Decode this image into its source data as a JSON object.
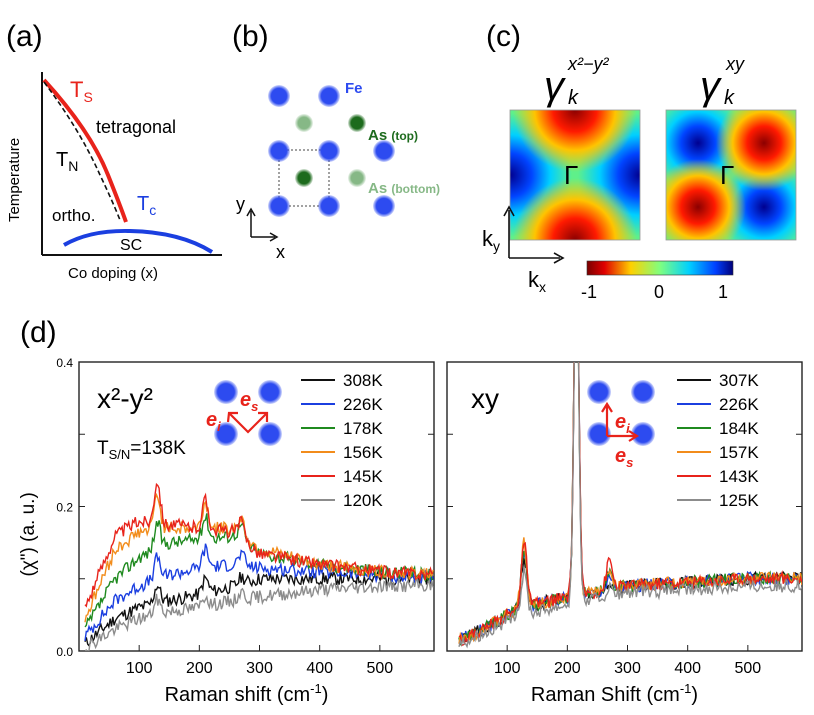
{
  "panels": {
    "a": {
      "label": "(a)",
      "ylabel": "Temperature",
      "xlabel": "Co doping (x)",
      "ts": "T",
      "ts_sub": "S",
      "tn": "T",
      "tn_sub": "N",
      "tc": "T",
      "tc_sub": "c",
      "tetragonal": "tetragonal",
      "ortho": "ortho.",
      "sc": "SC"
    },
    "b": {
      "label": "(b)",
      "fe": "Fe",
      "as_top": "As",
      "as_top_tag": "(top)",
      "as_bottom": "As",
      "as_bottom_tag": "(bottom)",
      "x": "x",
      "y": "y"
    },
    "c": {
      "label": "(c)",
      "gamma1": "γ",
      "gamma1_sub": "k",
      "gamma1_sup": "x²−y²",
      "gamma2": "γ",
      "gamma2_sub": "k",
      "gamma2_sup": "xy",
      "center1": "Γ",
      "center2": "Γ",
      "ky": "k",
      "ky_sub": "y",
      "kx": "k",
      "kx_sub": "x",
      "colorbar": [
        "-1",
        "0",
        "1"
      ]
    },
    "d": {
      "label": "(d)"
    }
  },
  "colors": {
    "red": "#e8231b",
    "blue": "#1b3fe0",
    "black": "#111111",
    "fe_blue": "#2d4bf0",
    "as_top": "#1d6b1d",
    "as_bottom": "#86b886"
  },
  "chart_data": [
    {
      "type": "line",
      "title": "x²-y²",
      "annotation": "T",
      "annotation_sub": "S/N",
      "annotation_rest": "=138K",
      "xlabel": "Raman shift (cm",
      "xlabel_sup": "-1",
      "xlabel_end": ")",
      "ylabel": "(χ\")  (a. u.)",
      "xlim": [
        0,
        590
      ],
      "ylim": [
        0.0,
        0.4
      ],
      "xticks": [
        "100",
        "200",
        "300",
        "400",
        "500"
      ],
      "yticks": [
        "0.0",
        "0.2",
        "0.4"
      ],
      "polarization": [
        "e",
        "i",
        "e",
        "s"
      ],
      "series": [
        {
          "name": "308K",
          "color": "#111111",
          "base": [
            [
              10,
              0.01
            ],
            [
              60,
              0.045
            ],
            [
              100,
              0.06
            ],
            [
              150,
              0.07
            ],
            [
              200,
              0.078
            ],
            [
              260,
              0.09
            ],
            [
              300,
              0.1
            ],
            [
              400,
              0.1
            ],
            [
              500,
              0.1
            ],
            [
              590,
              0.1
            ]
          ],
          "peaks": [
            [
              130,
              0.025
            ],
            [
              210,
              0.02
            ],
            [
              270,
              0.01
            ]
          ]
        },
        {
          "name": "226K",
          "color": "#1b3fe0",
          "base": [
            [
              10,
              0.02
            ],
            [
              60,
              0.07
            ],
            [
              100,
              0.09
            ],
            [
              150,
              0.105
            ],
            [
              200,
              0.115
            ],
            [
              260,
              0.12
            ],
            [
              300,
              0.115
            ],
            [
              400,
              0.11
            ],
            [
              500,
              0.105
            ],
            [
              590,
              0.1
            ]
          ],
          "peaks": [
            [
              130,
              0.03
            ],
            [
              210,
              0.025
            ],
            [
              270,
              0.015
            ]
          ]
        },
        {
          "name": "178K",
          "color": "#1f8a1f",
          "base": [
            [
              10,
              0.03
            ],
            [
              60,
              0.1
            ],
            [
              100,
              0.13
            ],
            [
              150,
              0.15
            ],
            [
              200,
              0.155
            ],
            [
              260,
              0.16
            ],
            [
              300,
              0.135
            ],
            [
              400,
              0.12
            ],
            [
              500,
              0.11
            ],
            [
              590,
              0.105
            ]
          ],
          "peaks": [
            [
              130,
              0.035
            ],
            [
              210,
              0.03
            ],
            [
              270,
              0.02
            ]
          ]
        },
        {
          "name": "156K",
          "color": "#f28c1b",
          "base": [
            [
              10,
              0.045
            ],
            [
              60,
              0.14
            ],
            [
              100,
              0.165
            ],
            [
              150,
              0.17
            ],
            [
              200,
              0.17
            ],
            [
              260,
              0.17
            ],
            [
              300,
              0.14
            ],
            [
              400,
              0.12
            ],
            [
              500,
              0.11
            ],
            [
              590,
              0.105
            ]
          ],
          "peaks": [
            [
              130,
              0.05
            ],
            [
              210,
              0.035
            ],
            [
              270,
              0.02
            ]
          ]
        },
        {
          "name": "145K",
          "color": "#e8231b",
          "base": [
            [
              10,
              0.06
            ],
            [
              60,
              0.16
            ],
            [
              100,
              0.18
            ],
            [
              150,
              0.175
            ],
            [
              200,
              0.17
            ],
            [
              260,
              0.165
            ],
            [
              300,
              0.135
            ],
            [
              400,
              0.12
            ],
            [
              500,
              0.11
            ],
            [
              590,
              0.105
            ]
          ],
          "peaks": [
            [
              130,
              0.06
            ],
            [
              210,
              0.04
            ],
            [
              270,
              0.02
            ]
          ]
        },
        {
          "name": "120K",
          "color": "#8c8c8c",
          "base": [
            [
              10,
              0.005
            ],
            [
              60,
              0.03
            ],
            [
              100,
              0.045
            ],
            [
              150,
              0.055
            ],
            [
              200,
              0.06
            ],
            [
              260,
              0.07
            ],
            [
              300,
              0.075
            ],
            [
              400,
              0.085
            ],
            [
              500,
              0.09
            ],
            [
              590,
              0.09
            ]
          ],
          "peaks": [
            [
              130,
              0.02
            ],
            [
              210,
              0.015
            ],
            [
              270,
              0.01
            ]
          ]
        }
      ]
    },
    {
      "type": "line",
      "title": "xy",
      "xlabel": "Raman Shift (cm",
      "xlabel_sup": "-1",
      "xlabel_end": ")",
      "xlim": [
        0,
        590
      ],
      "ylim": [
        0.0,
        0.4
      ],
      "xticks": [
        "100",
        "200",
        "300",
        "400",
        "500"
      ],
      "polarization": [
        "e",
        "i",
        "e",
        "s"
      ],
      "series": [
        {
          "name": "307K",
          "color": "#111111",
          "base": [
            [
              20,
              0.015
            ],
            [
              60,
              0.03
            ],
            [
              100,
              0.05
            ],
            [
              150,
              0.065
            ],
            [
              200,
              0.075
            ],
            [
              300,
              0.09
            ],
            [
              400,
              0.095
            ],
            [
              500,
              0.1
            ],
            [
              590,
              0.1
            ]
          ],
          "peaks": [
            [
              128,
              0.07
            ],
            [
              215,
              0.5
            ],
            [
              270,
              0.01
            ]
          ]
        },
        {
          "name": "226K",
          "color": "#1b3fe0",
          "base": [
            [
              20,
              0.015
            ],
            [
              60,
              0.03
            ],
            [
              100,
              0.05
            ],
            [
              150,
              0.065
            ],
            [
              200,
              0.075
            ],
            [
              300,
              0.09
            ],
            [
              400,
              0.095
            ],
            [
              500,
              0.1
            ],
            [
              590,
              0.1
            ]
          ],
          "peaks": [
            [
              128,
              0.08
            ],
            [
              215,
              0.5
            ],
            [
              270,
              0.015
            ]
          ]
        },
        {
          "name": "184K",
          "color": "#1f8a1f",
          "base": [
            [
              20,
              0.015
            ],
            [
              60,
              0.03
            ],
            [
              100,
              0.05
            ],
            [
              150,
              0.065
            ],
            [
              200,
              0.075
            ],
            [
              300,
              0.09
            ],
            [
              400,
              0.095
            ],
            [
              500,
              0.1
            ],
            [
              590,
              0.1
            ]
          ],
          "peaks": [
            [
              128,
              0.08
            ],
            [
              215,
              0.5
            ],
            [
              270,
              0.02
            ]
          ]
        },
        {
          "name": "157K",
          "color": "#f28c1b",
          "base": [
            [
              20,
              0.015
            ],
            [
              60,
              0.03
            ],
            [
              100,
              0.05
            ],
            [
              150,
              0.065
            ],
            [
              200,
              0.075
            ],
            [
              300,
              0.09
            ],
            [
              400,
              0.095
            ],
            [
              500,
              0.1
            ],
            [
              590,
              0.1
            ]
          ],
          "peaks": [
            [
              128,
              0.09
            ],
            [
              215,
              0.5
            ],
            [
              270,
              0.03
            ]
          ]
        },
        {
          "name": "143K",
          "color": "#e8231b",
          "base": [
            [
              20,
              0.015
            ],
            [
              60,
              0.03
            ],
            [
              100,
              0.05
            ],
            [
              150,
              0.065
            ],
            [
              200,
              0.075
            ],
            [
              300,
              0.09
            ],
            [
              400,
              0.095
            ],
            [
              500,
              0.1
            ],
            [
              590,
              0.1
            ]
          ],
          "peaks": [
            [
              128,
              0.09
            ],
            [
              215,
              0.5
            ],
            [
              270,
              0.04
            ]
          ]
        },
        {
          "name": "125K",
          "color": "#8c8c8c",
          "base": [
            [
              20,
              0.01
            ],
            [
              60,
              0.025
            ],
            [
              100,
              0.04
            ],
            [
              150,
              0.055
            ],
            [
              200,
              0.065
            ],
            [
              300,
              0.08
            ],
            [
              400,
              0.085
            ],
            [
              500,
              0.09
            ],
            [
              590,
              0.09
            ]
          ],
          "peaks": [
            [
              128,
              0.06
            ],
            [
              215,
              0.5
            ],
            [
              270,
              0.01
            ]
          ]
        }
      ]
    }
  ]
}
